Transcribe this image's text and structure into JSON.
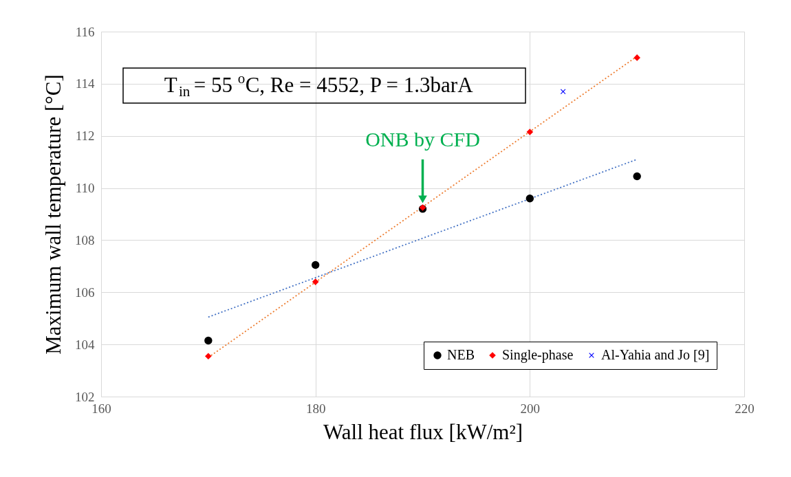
{
  "chart_data": {
    "type": "scatter",
    "xlabel": "Wall heat flux [kW/m²]",
    "ylabel": "Maximum wall temperature [°C]",
    "xlim": [
      160,
      220
    ],
    "xticks": [
      160,
      180,
      200,
      220
    ],
    "ylim": [
      102,
      116
    ],
    "yticks": [
      102,
      104,
      106,
      108,
      110,
      112,
      114,
      116
    ],
    "grid": true,
    "legend": "bottom right",
    "annotations": [
      "T$_{in}$ = 55$^{o}$C, Re = 4552, P = 1.3barA",
      {
        "text": "ONB by CFD",
        "x": 190,
        "y": 109.2
      }
    ],
    "series": [
      {
        "name": "NEB",
        "type": "scatter",
        "marker": "circle",
        "color": "#000000",
        "x": [
          170,
          180,
          190,
          200,
          210
        ],
        "values": [
          104.15,
          107.05,
          109.2,
          109.6,
          110.45
        ]
      },
      {
        "name": "Single-phase",
        "type": "scatter",
        "marker": "diamond",
        "color": "#ff0000",
        "x": [
          170,
          180,
          190,
          200,
          210
        ],
        "values": [
          103.55,
          106.4,
          109.25,
          112.15,
          115.0
        ]
      },
      {
        "name": "Al-Yahia and Jo [9]",
        "type": "scatter",
        "marker": "cross",
        "color": "#0000ff",
        "x": [
          203.1
        ],
        "values": [
          113.7
        ]
      },
      {
        "type": "line",
        "line_style": "dotted",
        "color": "#4472c4",
        "x": [
          170,
          210
        ],
        "values": [
          105.05,
          111.1
        ]
      },
      {
        "type": "line",
        "line_style": "dotted",
        "color": "#ed7d31",
        "x": [
          170,
          210
        ],
        "values": [
          103.5,
          115.05
        ]
      }
    ]
  }
}
